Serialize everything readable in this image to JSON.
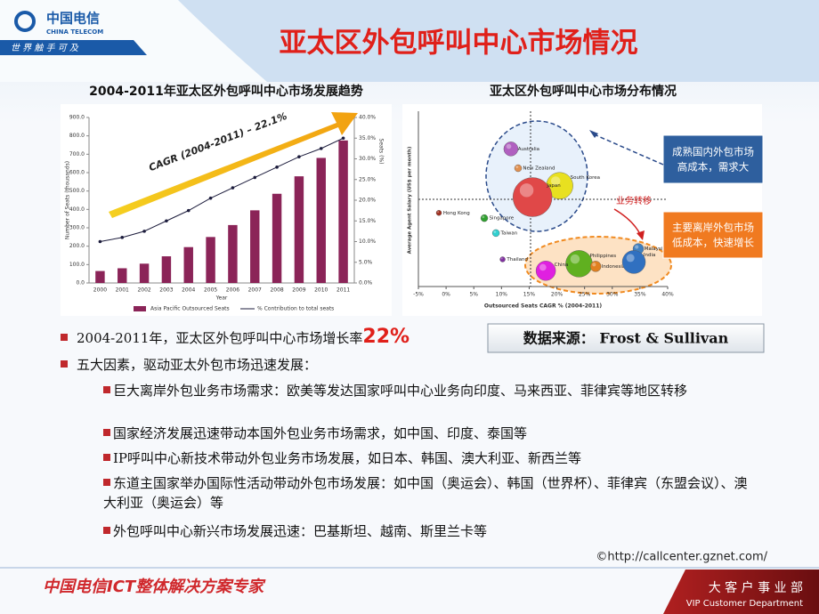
{
  "header": {
    "brand": "中国电信",
    "brand_en": "CHINA TELECOM",
    "slogan": "世 界 触 手 可 及",
    "title": "亚太区外包呼叫中心市场情况"
  },
  "chart_data": [
    {
      "type": "bar",
      "title": "2004-2011年亚太区外包呼叫中心市场发展趋势",
      "categories": [
        "2000",
        "2001",
        "2002",
        "2003",
        "2004",
        "2005",
        "2006",
        "2007",
        "2008",
        "2009",
        "2010",
        "2011"
      ],
      "series": [
        {
          "name": "Asia Pacific Outsourced Seats",
          "color": "#8b2458",
          "values": [
            65,
            80,
            105,
            145,
            195,
            250,
            315,
            395,
            485,
            580,
            680,
            775
          ]
        },
        {
          "name": "% Contribution to total seats",
          "type": "line",
          "axis": "y2",
          "color": "#1c1c3c",
          "values": [
            10,
            11,
            12.5,
            15,
            17.5,
            20.5,
            23,
            25.5,
            28,
            30.5,
            32.5,
            35
          ]
        }
      ],
      "ylim": [
        0,
        900
      ],
      "yticks": [
        {
          "value": 0,
          "label": "0.0"
        },
        {
          "value": 100,
          "label": "100.0"
        },
        {
          "value": 200,
          "label": "200.0"
        },
        {
          "value": 300,
          "label": "300.0"
        },
        {
          "value": 400,
          "label": "400.0"
        },
        {
          "value": 500,
          "label": "500.0"
        },
        {
          "value": 600,
          "label": "600.0"
        },
        {
          "value": 700,
          "label": "700.0"
        },
        {
          "value": 800,
          "label": "800.0"
        },
        {
          "value": 900,
          "label": "900.0"
        }
      ],
      "y2lim": [
        0,
        40
      ],
      "y2ticks": [
        {
          "value": 0,
          "label": "0.0%"
        },
        {
          "value": 5,
          "label": "5.0%"
        },
        {
          "value": 10,
          "label": "10.0%"
        },
        {
          "value": 15,
          "label": "15.0%"
        },
        {
          "value": 20,
          "label": "20.0%"
        },
        {
          "value": 25,
          "label": "25.0%"
        },
        {
          "value": 30,
          "label": "30.0%"
        },
        {
          "value": 35,
          "label": "35.0%"
        },
        {
          "value": 40,
          "label": "40.0%"
        }
      ],
      "xlabel": "Year",
      "ylabel": "Number of Seats (thousands)",
      "y2label": "Seats (%)",
      "annotation": "CAGR (2004-2011) – 22.1%"
    },
    {
      "type": "scatter",
      "title": "亚太区外包呼叫中心市场分布情况",
      "categories": [
        "Australia",
        "New Zealand",
        "South Korea",
        "Japan",
        "Hong Kong",
        "Singapore",
        "Taiwan",
        "Thailand",
        "Philippines",
        "China",
        "Indonesia",
        "Malaysia",
        "India"
      ],
      "x": [
        11.7,
        13,
        20.5,
        15.6,
        -1.3,
        6.9,
        9,
        10.2,
        24,
        18,
        27,
        34.7,
        33.9
      ],
      "values": [
        78.5,
        67.5,
        57.5,
        51,
        42,
        39,
        30.5,
        15.5,
        13,
        9,
        11.5,
        21.5,
        14
      ],
      "sizes": [
        8,
        4,
        15,
        22,
        3,
        4,
        4,
        3,
        15,
        11,
        6,
        6,
        13
      ],
      "colors": [
        "#b060c0",
        "#e09050",
        "#e8e020",
        "#e04848",
        "#a03020",
        "#30a030",
        "#30d0d0",
        "#8030a0",
        "#60b020",
        "#e020e0",
        "#e08020",
        "#4080c0",
        "#3070c0"
      ],
      "xlim": [
        -5,
        40
      ],
      "ylim": [
        0,
        100
      ],
      "xticks": [
        {
          "value": -5,
          "label": "-5%"
        },
        {
          "value": 0,
          "label": "0%"
        },
        {
          "value": 5,
          "label": "5%"
        },
        {
          "value": 10,
          "label": "10%"
        },
        {
          "value": 15,
          "label": "15%"
        },
        {
          "value": 20,
          "label": "20%"
        },
        {
          "value": 25,
          "label": "25%"
        },
        {
          "value": 30,
          "label": "30%"
        },
        {
          "value": 35,
          "label": "35%"
        },
        {
          "value": 40,
          "label": "40%"
        }
      ],
      "xlabel": "Outsourced Seats CAGR % (2004-2011)",
      "ylabel": "Average Agent Salary (US$ per month)",
      "annotations": [
        "成熟国内外包市场",
        "高成本，需求大",
        "主要离岸外包市场",
        "低成本，快速增长",
        "业务转移"
      ]
    }
  ],
  "source": "数据来源： Frost & Sullivan",
  "bullets": [
    {
      "text": "2004-2011年，亚太区外包呼叫中心市场增长率",
      "highlight": "22%"
    },
    {
      "text": "五大因素，驱动亚太外包市场迅速发展：",
      "items": [
        "巨大离岸外包业务市场需求：欧美等发达国家呼叫中心业务向印度、马来西亚、菲律宾等地区转移",
        "国家经济发展迅速带动本国外包业务市场需求，如中国、印度、泰国等",
        "IP呼叫中心新技术带动外包业务市场发展，如日本、韩国、澳大利亚、新西兰等",
        "东道主国家举办国际性活动带动外包市场发展：如中国（奥运会）、韩国（世界杯）、菲律宾（东盟会议）、澳大利亚（奥运会）等",
        "外包呼叫中心新兴市场发展迅速：巴基斯坦、越南、斯里兰卡等"
      ]
    }
  ],
  "url": "©http://callcenter.gznet.com/",
  "footer": {
    "slogan": "中国电信ICT整体解决方案专家",
    "dept": "大 客 户 事 业 部",
    "dept_en": "VIP Customer Department"
  }
}
